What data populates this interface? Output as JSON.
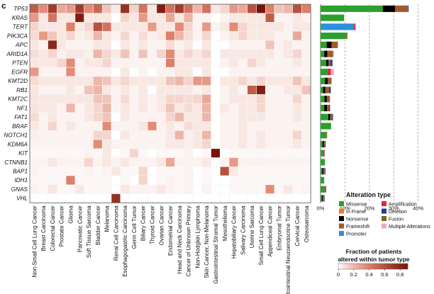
{
  "panel_label": "c",
  "chart_data": [
    {
      "type": "heatmap",
      "genes": [
        "TP53",
        "KRAS",
        "TERT",
        "PIK3CA",
        "APC",
        "ARID1A",
        "PTEN",
        "EGFR",
        "KMT2D",
        "RB1",
        "KMT2C",
        "NF1",
        "FAT1",
        "BRAF",
        "NOTCH1",
        "KDM6A",
        "KIT",
        "CTNNB1",
        "BAP1",
        "IDH1",
        "GNAS",
        "VHL"
      ],
      "tumor_types": [
        "Non-Small Cell Lung Cancer",
        "Breast Carcinoma",
        "Colorectal Cancer",
        "Prostate Cancer",
        "Glioma",
        "Pancreatic Cancer",
        "Soft Tissue Sarcoma",
        "Bladder Cancer",
        "Melanoma",
        "Renal Cell Carcinoma",
        "Esophagogastric Carcinoma",
        "Germ Cell Tumor",
        "Biliary Cancer",
        "Thyroid Cancer",
        "Ovarian Cancer",
        "Endometrial Cancer",
        "Head and Neck Carcinoma",
        "Cancer of Unknown Primary",
        "Non-Hodgkin Lymphoma",
        "Skin Cancer, Non-Melanoma",
        "Gastrointestinal Stromal Tumor",
        "Mesothelioma",
        "Hepatobiliary Cancer",
        "Salivary Carcinoma",
        "Uterine Sarcoma",
        "Small Cell Lung Cancer",
        "Appendiceal Cancer",
        "Embryonal Tumor",
        "Gastrointestinal Neuroendocrine Tumor",
        "Cervical Cancer",
        "Osteosarcoma"
      ],
      "values": [
        [
          0.55,
          0.35,
          0.7,
          0.25,
          0.3,
          0.7,
          0.35,
          0.5,
          0.15,
          0.05,
          0.75,
          0.1,
          0.45,
          0.05,
          0.85,
          0.45,
          0.7,
          0.45,
          0.2,
          0.45,
          0.05,
          0.1,
          0.3,
          0.25,
          0.6,
          0.9,
          0.4,
          0.15,
          0.2,
          0.6,
          0.4
        ],
        [
          0.3,
          0.05,
          0.45,
          0.05,
          0.05,
          0.85,
          0.05,
          0.05,
          0.05,
          0.0,
          0.1,
          0.05,
          0.3,
          0.05,
          0.05,
          0.25,
          0.05,
          0.2,
          0.02,
          0.02,
          0.0,
          0.02,
          0.05,
          0.05,
          0.05,
          0.05,
          0.55,
          0.02,
          0.02,
          0.05,
          0.02
        ],
        [
          0.1,
          0.05,
          0.05,
          0.05,
          0.4,
          0.05,
          0.1,
          0.6,
          0.45,
          0.05,
          0.05,
          0.05,
          0.05,
          0.3,
          0.05,
          0.05,
          0.35,
          0.1,
          0.02,
          0.3,
          0.02,
          0.05,
          0.35,
          0.1,
          0.05,
          0.05,
          0.05,
          0.05,
          0.02,
          0.05,
          0.05
        ],
        [
          0.08,
          0.3,
          0.15,
          0.05,
          0.1,
          0.03,
          0.05,
          0.2,
          0.05,
          0.02,
          0.1,
          0.02,
          0.08,
          0.03,
          0.05,
          0.4,
          0.2,
          0.08,
          0.02,
          0.1,
          0.0,
          0.02,
          0.05,
          0.1,
          0.05,
          0.05,
          0.05,
          0.02,
          0.02,
          0.25,
          0.02
        ],
        [
          0.05,
          0.02,
          0.8,
          0.05,
          0.02,
          0.02,
          0.02,
          0.05,
          0.05,
          0.0,
          0.05,
          0.02,
          0.05,
          0.02,
          0.02,
          0.08,
          0.02,
          0.05,
          0.0,
          0.05,
          0.0,
          0.0,
          0.02,
          0.02,
          0.02,
          0.02,
          0.15,
          0.02,
          0.05,
          0.02,
          0.02
        ],
        [
          0.07,
          0.05,
          0.1,
          0.03,
          0.05,
          0.05,
          0.03,
          0.2,
          0.1,
          0.05,
          0.15,
          0.02,
          0.15,
          0.02,
          0.1,
          0.35,
          0.05,
          0.1,
          0.05,
          0.1,
          0.0,
          0.05,
          0.05,
          0.05,
          0.05,
          0.05,
          0.05,
          0.02,
          0.05,
          0.1,
          0.02
        ],
        [
          0.05,
          0.05,
          0.05,
          0.1,
          0.35,
          0.02,
          0.05,
          0.05,
          0.1,
          0.02,
          0.02,
          0.02,
          0.02,
          0.02,
          0.02,
          0.4,
          0.05,
          0.05,
          0.05,
          0.05,
          0.0,
          0.02,
          0.05,
          0.02,
          0.1,
          0.05,
          0.02,
          0.02,
          0.02,
          0.05,
          0.02
        ],
        [
          0.3,
          0.02,
          0.02,
          0.02,
          0.35,
          0.02,
          0.02,
          0.02,
          0.02,
          0.0,
          0.05,
          0.0,
          0.02,
          0.0,
          0.02,
          0.02,
          0.05,
          0.05,
          0.0,
          0.05,
          0.0,
          0.0,
          0.02,
          0.02,
          0.02,
          0.02,
          0.02,
          0.02,
          0.02,
          0.02,
          0.02
        ],
        [
          0.08,
          0.05,
          0.05,
          0.05,
          0.05,
          0.05,
          0.05,
          0.2,
          0.15,
          0.05,
          0.1,
          0.05,
          0.05,
          0.05,
          0.05,
          0.15,
          0.2,
          0.1,
          0.3,
          0.3,
          0.0,
          0.05,
          0.05,
          0.1,
          0.05,
          0.1,
          0.05,
          0.05,
          0.05,
          0.15,
          0.05
        ],
        [
          0.05,
          0.02,
          0.02,
          0.02,
          0.05,
          0.02,
          0.15,
          0.2,
          0.05,
          0.02,
          0.05,
          0.02,
          0.05,
          0.0,
          0.05,
          0.05,
          0.05,
          0.05,
          0.02,
          0.05,
          0.0,
          0.02,
          0.05,
          0.02,
          0.55,
          0.85,
          0.02,
          0.02,
          0.05,
          0.05,
          0.15
        ],
        [
          0.06,
          0.05,
          0.05,
          0.05,
          0.05,
          0.05,
          0.05,
          0.15,
          0.15,
          0.02,
          0.08,
          0.02,
          0.05,
          0.02,
          0.05,
          0.1,
          0.1,
          0.08,
          0.1,
          0.25,
          0.0,
          0.02,
          0.05,
          0.05,
          0.05,
          0.1,
          0.02,
          0.02,
          0.02,
          0.1,
          0.02
        ],
        [
          0.06,
          0.05,
          0.05,
          0.02,
          0.2,
          0.02,
          0.05,
          0.1,
          0.2,
          0.02,
          0.05,
          0.02,
          0.05,
          0.02,
          0.05,
          0.15,
          0.05,
          0.08,
          0.05,
          0.2,
          0.0,
          0.05,
          0.02,
          0.05,
          0.05,
          0.1,
          0.02,
          0.02,
          0.02,
          0.05,
          0.02
        ],
        [
          0.08,
          0.02,
          0.05,
          0.02,
          0.02,
          0.02,
          0.05,
          0.1,
          0.15,
          0.0,
          0.05,
          0.02,
          0.02,
          0.02,
          0.02,
          0.1,
          0.2,
          0.05,
          0.05,
          0.2,
          0.0,
          0.02,
          0.02,
          0.05,
          0.05,
          0.05,
          0.02,
          0.02,
          0.02,
          0.05,
          0.02
        ],
        [
          0.05,
          0.02,
          0.1,
          0.02,
          0.05,
          0.02,
          0.02,
          0.02,
          0.35,
          0.02,
          0.02,
          0.02,
          0.05,
          0.35,
          0.02,
          0.05,
          0.02,
          0.08,
          0.05,
          0.05,
          0.0,
          0.02,
          0.02,
          0.05,
          0.02,
          0.02,
          0.02,
          0.02,
          0.02,
          0.02,
          0.02
        ],
        [
          0.03,
          0.02,
          0.02,
          0.02,
          0.02,
          0.02,
          0.02,
          0.1,
          0.1,
          0.0,
          0.05,
          0.02,
          0.02,
          0.02,
          0.02,
          0.05,
          0.2,
          0.03,
          0.05,
          0.2,
          0.0,
          0.02,
          0.02,
          0.05,
          0.02,
          0.05,
          0.02,
          0.02,
          0.02,
          0.1,
          0.02
        ],
        [
          0.02,
          0.02,
          0.02,
          0.02,
          0.02,
          0.02,
          0.02,
          0.35,
          0.05,
          0.02,
          0.02,
          0.02,
          0.02,
          0.02,
          0.02,
          0.05,
          0.05,
          0.03,
          0.05,
          0.1,
          0.0,
          0.02,
          0.02,
          0.05,
          0.02,
          0.05,
          0.02,
          0.02,
          0.02,
          0.05,
          0.02
        ],
        [
          0.01,
          0.01,
          0.01,
          0.01,
          0.01,
          0.01,
          0.02,
          0.01,
          0.05,
          0.0,
          0.01,
          0.1,
          0.01,
          0.0,
          0.01,
          0.01,
          0.01,
          0.02,
          0.0,
          0.01,
          0.9,
          0.0,
          0.01,
          0.01,
          0.01,
          0.01,
          0.01,
          0.01,
          0.01,
          0.01,
          0.01
        ],
        [
          0.02,
          0.02,
          0.05,
          0.02,
          0.02,
          0.02,
          0.1,
          0.02,
          0.05,
          0.02,
          0.05,
          0.02,
          0.02,
          0.02,
          0.05,
          0.25,
          0.02,
          0.02,
          0.02,
          0.05,
          0.0,
          0.02,
          0.3,
          0.02,
          0.02,
          0.02,
          0.02,
          0.02,
          0.02,
          0.02,
          0.02
        ],
        [
          0.02,
          0.01,
          0.01,
          0.01,
          0.01,
          0.01,
          0.02,
          0.01,
          0.02,
          0.05,
          0.01,
          0.01,
          0.1,
          0.0,
          0.01,
          0.01,
          0.01,
          0.02,
          0.0,
          0.01,
          0.0,
          0.6,
          0.05,
          0.01,
          0.01,
          0.01,
          0.01,
          0.01,
          0.01,
          0.01,
          0.01
        ],
        [
          0.01,
          0.01,
          0.01,
          0.01,
          0.4,
          0.01,
          0.01,
          0.01,
          0.01,
          0.0,
          0.01,
          0.0,
          0.1,
          0.0,
          0.01,
          0.02,
          0.01,
          0.02,
          0.0,
          0.01,
          0.0,
          0.0,
          0.01,
          0.01,
          0.01,
          0.01,
          0.01,
          0.01,
          0.01,
          0.01,
          0.01
        ],
        [
          0.02,
          0.01,
          0.05,
          0.01,
          0.01,
          0.05,
          0.01,
          0.01,
          0.01,
          0.0,
          0.05,
          0.02,
          0.02,
          0.02,
          0.05,
          0.02,
          0.01,
          0.02,
          0.0,
          0.02,
          0.0,
          0.0,
          0.01,
          0.01,
          0.01,
          0.01,
          0.35,
          0.01,
          0.05,
          0.01,
          0.02
        ],
        [
          0.0,
          0.0,
          0.0,
          0.0,
          0.0,
          0.0,
          0.0,
          0.0,
          0.0,
          0.75,
          0.0,
          0.0,
          0.0,
          0.0,
          0.0,
          0.0,
          0.0,
          0.0,
          0.0,
          0.0,
          0.0,
          0.0,
          0.0,
          0.0,
          0.0,
          0.0,
          0.0,
          0.0,
          0.0,
          0.0,
          0.0
        ]
      ],
      "colorbar": {
        "title": [
          "Fraction of patients",
          "altered within tumor type"
        ],
        "ticks": [
          "0",
          "0.2",
          "0.4",
          "0.6",
          "0.8"
        ],
        "range": [
          0,
          0.9
        ],
        "low_color": "#ffffff",
        "high_color": "#7a1308"
      }
    },
    {
      "type": "stacked-bar-horizontal",
      "categories": [
        "TP53",
        "KRAS",
        "TERT",
        "PIK3CA",
        "APC",
        "ARID1A",
        "PTEN",
        "EGFR",
        "KMT2D",
        "RB1",
        "KMT2C",
        "NF1",
        "FAT1",
        "BRAF",
        "NOTCH1",
        "KDM6A",
        "KIT",
        "CTNNB1",
        "BAP1",
        "IDH1",
        "GNAS",
        "VHL"
      ],
      "x_ticks": [
        "0%",
        "10%",
        "20%",
        "30%",
        "40%"
      ],
      "xlim": [
        0,
        43
      ],
      "grid": "vertical dashed",
      "series": [
        {
          "name": "Missense",
          "color": "#2ca02c",
          "values": [
            25.5,
            9.3,
            0.4,
            10.6,
            2.5,
            1.5,
            2.3,
            2.8,
            1.8,
            1.0,
            1.6,
            1.5,
            3.2,
            4.3,
            2.4,
            0.8,
            1.2,
            1.8,
            0.7,
            1.5,
            1.7,
            0.5
          ]
        },
        {
          "name": "In Frame",
          "color": "#f07a2c",
          "values": [
            0,
            0,
            0,
            0,
            0,
            0,
            0,
            0,
            0,
            0,
            0,
            0,
            0,
            0,
            0,
            0,
            0,
            0,
            0,
            0,
            0,
            0
          ]
        },
        {
          "name": "Nonsense",
          "color": "#000000",
          "values": [
            5.0,
            0,
            0,
            0,
            2.0,
            1.3,
            1.0,
            0,
            1.2,
            1.0,
            1.0,
            1.2,
            0.8,
            0,
            0,
            0.6,
            0,
            0,
            0.5,
            0,
            0,
            0.4
          ]
        },
        {
          "name": "Frameshift",
          "color": "#a05a2c",
          "values": [
            5.0,
            0,
            0,
            0.1,
            2.6,
            2.3,
            0.8,
            0,
            1.5,
            1.5,
            1.2,
            0.8,
            0.8,
            0,
            0.3,
            0.5,
            0,
            0,
            0.5,
            0,
            0,
            0.6
          ]
        },
        {
          "name": "Promoter",
          "color": "#2b8fe0",
          "values": [
            0,
            0,
            13.3,
            0,
            0,
            0,
            0,
            0,
            0,
            0,
            0,
            0,
            0,
            0,
            0,
            0,
            0,
            0,
            0,
            0,
            0,
            0
          ]
        },
        {
          "name": "Amplification",
          "color": "#d9283c",
          "values": [
            0.3,
            0.3,
            0.6,
            0.3,
            0,
            0,
            0,
            1.4,
            0,
            0,
            0,
            0,
            0,
            0,
            0,
            0,
            0.5,
            0,
            0,
            0,
            0.6,
            0
          ]
        },
        {
          "name": "Deletion",
          "color": "#1f3f8f",
          "values": [
            0.3,
            0,
            0,
            0,
            0,
            0,
            0.8,
            0,
            0,
            0.7,
            0,
            0.4,
            0.3,
            0,
            0,
            0.2,
            0,
            0,
            0.3,
            0,
            0,
            0.2
          ]
        },
        {
          "name": "Fusion",
          "color": "#8b5a2b",
          "values": [
            0,
            0,
            0,
            0,
            0,
            0,
            0,
            0,
            0,
            0,
            0,
            0,
            0,
            0,
            0,
            0,
            0,
            0,
            0,
            0,
            0,
            0
          ]
        },
        {
          "name": "Multiple Alterations",
          "color": "#f0a8c8",
          "values": [
            0,
            0,
            0,
            0,
            0,
            0.4,
            0,
            1.2,
            0,
            0,
            0.2,
            0,
            0,
            0,
            0,
            0,
            0,
            0,
            0,
            0,
            0,
            0
          ]
        }
      ],
      "legend": {
        "title": "Alteration type",
        "placement": "bottom-right",
        "columns": [
          [
            "Missense",
            "In Frame",
            "Nonsense",
            "Frameshift",
            "Promoter"
          ],
          [
            "Amplification",
            "Deletion",
            "Fusion",
            "Multiple Alterations"
          ]
        ]
      }
    }
  ]
}
